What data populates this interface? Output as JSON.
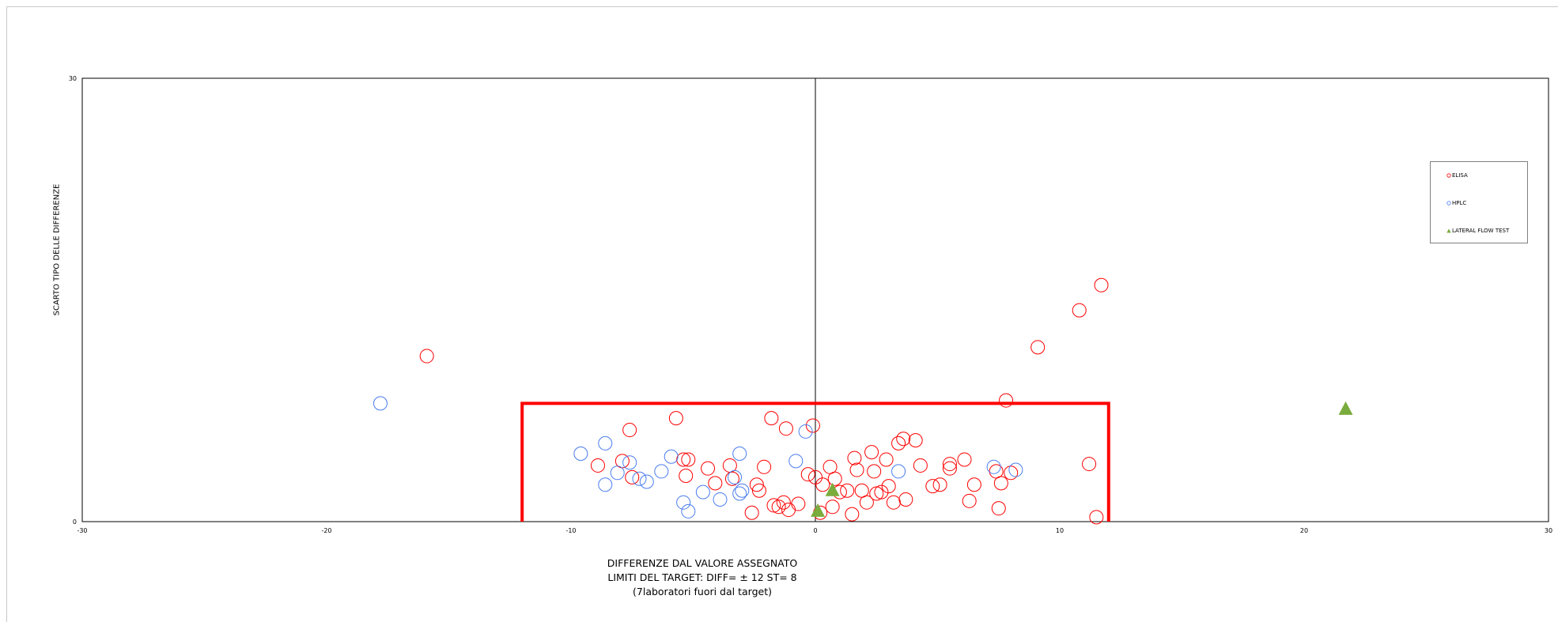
{
  "chart_data": {
    "type": "scatter",
    "ylabel": "SCARTO TIPO DELLE DIFFERENZE",
    "xlabel_lines": [
      "DIFFERENZE DAL VALORE ASSEGNATO",
      "LIMITI DEL TARGET: DIFF= ± 12  ST= 8",
      "(7laboratori fuori dal target)"
    ],
    "xlim": [
      -30,
      30
    ],
    "ylim": [
      0,
      30
    ],
    "x_ticks": [
      "-30",
      "-20",
      "-10",
      "0",
      "10",
      "20",
      "30"
    ],
    "y_ticks": [
      "0",
      "30"
    ],
    "target": {
      "diff": 12,
      "st": 8,
      "color": "#ff0000"
    },
    "legend_position": "right",
    "series": [
      {
        "name": "ELISA",
        "marker": "circle",
        "color": "#ff0000",
        "points": [
          [
            -15.9,
            11.2
          ],
          [
            -7.6,
            6.2
          ],
          [
            -5.7,
            7.0
          ],
          [
            -8.9,
            3.8
          ],
          [
            -7.9,
            4.1
          ],
          [
            -7.5,
            3.0
          ],
          [
            -5.4,
            4.2
          ],
          [
            -5.2,
            4.2
          ],
          [
            -5.3,
            3.1
          ],
          [
            -4.4,
            3.6
          ],
          [
            -4.1,
            2.6
          ],
          [
            -3.5,
            3.8
          ],
          [
            -3.4,
            2.9
          ],
          [
            -2.6,
            0.6
          ],
          [
            -2.4,
            2.5
          ],
          [
            -2.3,
            2.1
          ],
          [
            -2.1,
            3.7
          ],
          [
            -1.8,
            7.0
          ],
          [
            -1.7,
            1.1
          ],
          [
            -1.5,
            1.0
          ],
          [
            -1.3,
            1.3
          ],
          [
            -1.2,
            6.3
          ],
          [
            -1.1,
            0.8
          ],
          [
            -0.7,
            1.2
          ],
          [
            -0.3,
            3.2
          ],
          [
            -0.1,
            6.5
          ],
          [
            0.0,
            3.0
          ],
          [
            0.2,
            0.6
          ],
          [
            0.3,
            2.5
          ],
          [
            0.6,
            3.7
          ],
          [
            0.8,
            2.9
          ],
          [
            0.7,
            1.0
          ],
          [
            1.0,
            2.0
          ],
          [
            1.3,
            2.1
          ],
          [
            1.5,
            0.5
          ],
          [
            1.6,
            4.3
          ],
          [
            1.7,
            3.5
          ],
          [
            1.9,
            2.1
          ],
          [
            2.1,
            1.3
          ],
          [
            2.3,
            4.7
          ],
          [
            2.4,
            3.4
          ],
          [
            2.5,
            1.9
          ],
          [
            2.7,
            2.0
          ],
          [
            2.9,
            4.2
          ],
          [
            3.0,
            2.4
          ],
          [
            3.2,
            1.3
          ],
          [
            3.4,
            5.3
          ],
          [
            3.6,
            5.6
          ],
          [
            3.7,
            1.5
          ],
          [
            4.1,
            5.5
          ],
          [
            4.3,
            3.8
          ],
          [
            4.8,
            2.4
          ],
          [
            5.1,
            2.5
          ],
          [
            5.5,
            3.6
          ],
          [
            5.5,
            3.9
          ],
          [
            6.1,
            4.2
          ],
          [
            6.3,
            1.4
          ],
          [
            6.5,
            2.5
          ],
          [
            7.4,
            3.4
          ],
          [
            7.5,
            0.9
          ],
          [
            7.6,
            2.6
          ],
          [
            7.8,
            8.2
          ],
          [
            8.0,
            3.3
          ],
          [
            9.1,
            11.8
          ],
          [
            10.8,
            14.3
          ],
          [
            11.2,
            3.9
          ],
          [
            11.5,
            0.3
          ],
          [
            11.7,
            16.0
          ]
        ]
      },
      {
        "name": "HPLC",
        "marker": "circle",
        "color": "#4a7df0",
        "points": [
          [
            -17.8,
            8.0
          ],
          [
            -9.6,
            4.6
          ],
          [
            -8.6,
            5.3
          ],
          [
            -8.6,
            2.5
          ],
          [
            -8.1,
            3.3
          ],
          [
            -7.6,
            4.0
          ],
          [
            -7.2,
            2.9
          ],
          [
            -6.9,
            2.7
          ],
          [
            -6.3,
            3.4
          ],
          [
            -5.9,
            4.4
          ],
          [
            -5.4,
            1.3
          ],
          [
            -5.2,
            0.7
          ],
          [
            -4.6,
            2.0
          ],
          [
            -3.9,
            1.5
          ],
          [
            -3.3,
            3.0
          ],
          [
            -3.1,
            1.9
          ],
          [
            -3.0,
            2.1
          ],
          [
            -3.1,
            4.6
          ],
          [
            -0.8,
            4.1
          ],
          [
            -0.4,
            6.1
          ],
          [
            3.4,
            3.4
          ],
          [
            7.3,
            3.7
          ],
          [
            8.2,
            3.5
          ]
        ]
      },
      {
        "name": "LATERAL FLOW TEST",
        "marker": "triangle",
        "color": "#7aab3d",
        "points": [
          [
            0.1,
            0.7
          ],
          [
            0.7,
            2.1
          ],
          [
            21.7,
            7.6
          ]
        ]
      }
    ]
  }
}
